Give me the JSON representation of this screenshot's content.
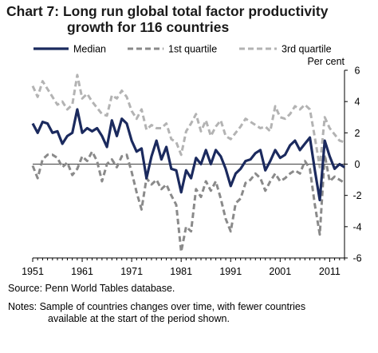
{
  "title_line1": "Chart 7: Long run global total factor productivity",
  "title_line2": "growth for 116 countries",
  "source": "Source: Penn World Tables database.",
  "notes_line1": "Notes: Sample of countries changes over time, with fewer countries",
  "notes_line2": "available at the start of the period shown.",
  "chart_data": {
    "type": "line",
    "ylabel": "Per cent",
    "xlim": [
      1951,
      2014
    ],
    "ylim": [
      -6,
      6
    ],
    "x_ticks": [
      1951,
      1961,
      1971,
      1981,
      1991,
      2001,
      2011
    ],
    "y_ticks": [
      6,
      4,
      2,
      0,
      -2,
      -4,
      -6
    ],
    "legend_position": "top",
    "x": [
      1951,
      1952,
      1953,
      1954,
      1955,
      1956,
      1957,
      1958,
      1959,
      1960,
      1961,
      1962,
      1963,
      1964,
      1965,
      1966,
      1967,
      1968,
      1969,
      1970,
      1971,
      1972,
      1973,
      1974,
      1975,
      1976,
      1977,
      1978,
      1979,
      1980,
      1981,
      1982,
      1983,
      1984,
      1985,
      1986,
      1987,
      1988,
      1989,
      1990,
      1991,
      1992,
      1993,
      1994,
      1995,
      1996,
      1997,
      1998,
      1999,
      2000,
      2001,
      2002,
      2003,
      2004,
      2005,
      2006,
      2007,
      2008,
      2009,
      2010,
      2011,
      2012,
      2013,
      2014
    ],
    "series": [
      {
        "name": "Median",
        "color": "#1b2a5e",
        "style": "solid",
        "values": [
          2.6,
          2.0,
          2.7,
          2.6,
          2.0,
          2.1,
          1.3,
          1.8,
          2.0,
          3.5,
          2.0,
          2.3,
          2.1,
          2.3,
          1.8,
          1.1,
          2.8,
          1.8,
          2.9,
          2.6,
          1.5,
          0.8,
          1.0,
          -0.9,
          0.5,
          1.5,
          0.3,
          1.1,
          -0.3,
          -0.4,
          -1.8,
          -0.4,
          -0.9,
          0.4,
          0.0,
          0.9,
          0.0,
          0.9,
          0.5,
          -0.3,
          -1.4,
          -0.6,
          -0.3,
          0.2,
          0.3,
          0.7,
          0.9,
          -0.4,
          0.2,
          0.9,
          0.4,
          0.6,
          1.2,
          1.5,
          0.9,
          1.3,
          1.7,
          -0.4,
          -2.3,
          1.5,
          0.5,
          -0.3,
          0.0,
          -0.2
        ]
      },
      {
        "name": "1st quartile",
        "color": "#8a8a8a",
        "style": "dashed",
        "values": [
          -0.1,
          -0.9,
          0.3,
          0.6,
          0.6,
          0.4,
          -0.2,
          0.1,
          -0.7,
          -0.3,
          0.5,
          0.2,
          0.8,
          0.2,
          -1.1,
          0.0,
          0.3,
          -0.2,
          0.5,
          0.6,
          -0.5,
          -1.8,
          -2.9,
          -0.9,
          -1.3,
          -1.0,
          -1.6,
          -1.3,
          -2.0,
          -2.6,
          -5.6,
          -4.0,
          -4.3,
          -1.6,
          -2.1,
          -1.1,
          -1.7,
          -1.1,
          -2.2,
          -3.5,
          -4.3,
          -2.5,
          -2.2,
          -1.2,
          -1.0,
          -0.6,
          -0.9,
          -1.7,
          -1.1,
          -0.6,
          -1.1,
          -0.9,
          -0.6,
          -0.4,
          -0.6,
          0.2,
          -0.3,
          -2.6,
          -4.5,
          0.6,
          -1.1,
          -0.8,
          -1.0,
          -1.2
        ]
      },
      {
        "name": "3rd quartile",
        "color": "#b3b3b3",
        "style": "dashed",
        "values": [
          5.0,
          4.3,
          5.3,
          4.8,
          4.3,
          3.8,
          4.0,
          3.5,
          3.8,
          5.7,
          4.2,
          4.5,
          4.0,
          3.6,
          3.2,
          3.1,
          4.4,
          4.2,
          4.7,
          4.3,
          3.4,
          2.9,
          3.5,
          2.2,
          2.5,
          2.3,
          2.3,
          2.6,
          1.6,
          1.4,
          0.6,
          2.1,
          2.6,
          3.2,
          2.1,
          2.8,
          1.8,
          2.4,
          2.8,
          1.8,
          1.6,
          2.0,
          2.4,
          2.9,
          2.7,
          2.5,
          2.3,
          2.4,
          2.1,
          3.7,
          3.0,
          2.9,
          3.2,
          3.7,
          3.5,
          3.8,
          3.5,
          1.7,
          -0.2,
          3.0,
          2.3,
          1.9,
          1.5,
          1.4
        ]
      }
    ]
  }
}
